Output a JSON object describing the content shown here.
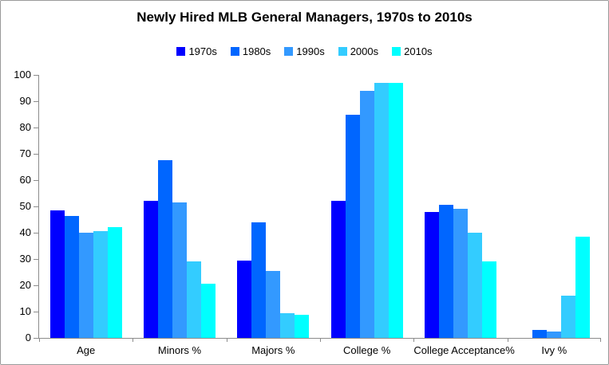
{
  "chart_data": {
    "type": "bar",
    "title": "Newly Hired MLB General Managers, 1970s to 2010s",
    "categories": [
      "Age",
      "Minors %",
      "Majors %",
      "College %",
      "College Acceptance%",
      "Ivy %"
    ],
    "series": [
      {
        "name": "1970s",
        "color": "#0000FF",
        "values": [
          48.5,
          52,
          29.5,
          52,
          48,
          0
        ]
      },
      {
        "name": "1980s",
        "color": "#0066FF",
        "values": [
          46.5,
          67.5,
          44,
          85,
          50.5,
          3
        ]
      },
      {
        "name": "1990s",
        "color": "#3399FF",
        "values": [
          40,
          51.5,
          25.5,
          94,
          49,
          2.5
        ]
      },
      {
        "name": "2000s",
        "color": "#33CCFF",
        "values": [
          40.5,
          29,
          9.5,
          97,
          40,
          16
        ]
      },
      {
        "name": "2010s",
        "color": "#00FFFF",
        "values": [
          42,
          20.5,
          8.7,
          97,
          29,
          38.5
        ]
      }
    ],
    "xlabel": "",
    "ylabel": "",
    "ylim": [
      0,
      100
    ],
    "ytick_step": 10,
    "ytick_labels": [
      "0",
      "10",
      "20",
      "30",
      "40",
      "50",
      "60",
      "70",
      "80",
      "90",
      "100"
    ],
    "grid": false,
    "legend_position": "top",
    "axis_color": "#8c8c8c"
  }
}
